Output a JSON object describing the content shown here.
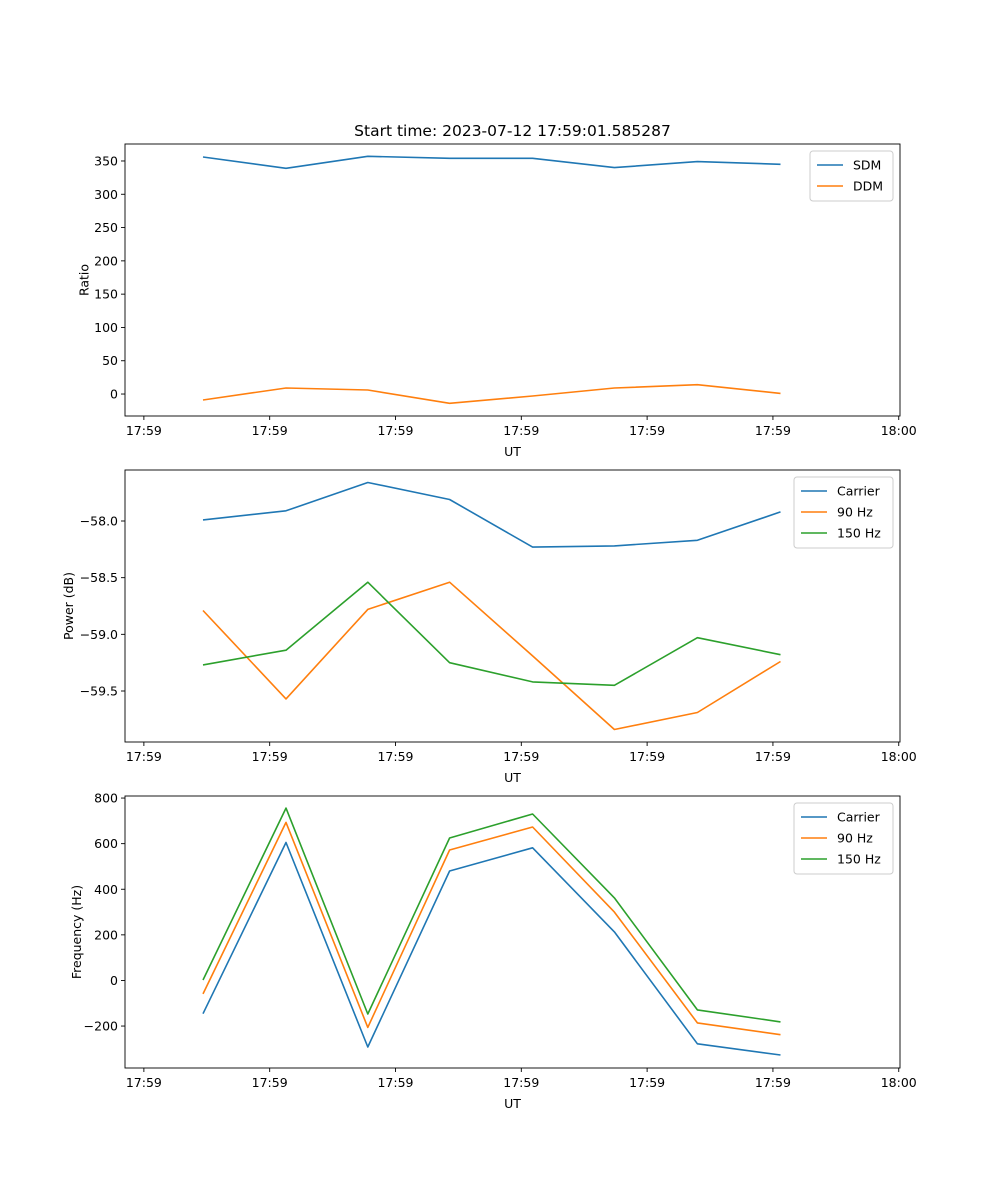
{
  "title": "Start time: 2023-07-12 17:59:01.585287",
  "colors": {
    "blue": "#1f77b4",
    "orange": "#ff7f0e",
    "green": "#2ca02c"
  },
  "chart_data": [
    {
      "type": "line",
      "xlabel": "UT",
      "ylabel": "Ratio",
      "x_units": "seconds after 17:59:00",
      "x": [
        4.7,
        11.3,
        17.8,
        24.3,
        30.9,
        37.4,
        44.0,
        50.6
      ],
      "xlim": [
        -1.5,
        60.1
      ],
      "xticks": [
        0,
        10,
        20,
        30,
        40,
        50,
        60
      ],
      "xtick_labels": [
        "17:59",
        "17:59",
        "17:59",
        "17:59",
        "17:59",
        "17:59",
        "18:00"
      ],
      "ylim": [
        -33,
        375.5
      ],
      "yticks": [
        0,
        50,
        100,
        150,
        200,
        250,
        300,
        350
      ],
      "ytick_labels": [
        "0",
        "50",
        "100",
        "150",
        "200",
        "250",
        "300",
        "350"
      ],
      "legend_position": "top-right",
      "series": [
        {
          "name": "SDM",
          "color": "#1f77b4",
          "values": [
            356,
            339,
            357,
            354,
            354,
            340,
            349,
            345
          ]
        },
        {
          "name": "DDM",
          "color": "#ff7f0e",
          "values": [
            -9,
            9,
            6,
            -14,
            -3,
            9,
            14,
            1
          ]
        }
      ]
    },
    {
      "type": "line",
      "xlabel": "UT",
      "ylabel": "Power (dB)",
      "x_units": "seconds after 17:59:00",
      "x": [
        4.7,
        11.3,
        17.8,
        24.3,
        30.9,
        37.4,
        44.0,
        50.6
      ],
      "xlim": [
        -1.5,
        60.1
      ],
      "xticks": [
        0,
        10,
        20,
        30,
        40,
        50,
        60
      ],
      "xtick_labels": [
        "17:59",
        "17:59",
        "17:59",
        "17:59",
        "17:59",
        "17:59",
        "18:00"
      ],
      "ylim": [
        -59.95,
        -57.55
      ],
      "yticks": [
        -58.0,
        -58.5,
        -59.0,
        -59.5
      ],
      "ytick_labels": [
        "−58.0",
        "−58.5",
        "−59.0",
        "−59.5"
      ],
      "legend_position": "top-right",
      "series": [
        {
          "name": "Carrier",
          "color": "#1f77b4",
          "values": [
            -57.99,
            -57.91,
            -57.66,
            -57.81,
            -58.23,
            -58.22,
            -58.17,
            -57.92
          ]
        },
        {
          "name": "90 Hz",
          "color": "#ff7f0e",
          "values": [
            -58.79,
            -59.57,
            -58.78,
            -58.54,
            -59.19,
            -59.84,
            -59.69,
            -59.24
          ]
        },
        {
          "name": "150 Hz",
          "color": "#2ca02c",
          "values": [
            -59.27,
            -59.14,
            -58.54,
            -59.25,
            -59.42,
            -59.45,
            -59.03,
            -59.18
          ]
        }
      ]
    },
    {
      "type": "line",
      "xlabel": "UT",
      "ylabel": "Frequency (Hz)",
      "x_units": "seconds after 17:59:00",
      "x": [
        4.7,
        11.3,
        17.8,
        24.3,
        30.9,
        37.4,
        44.0,
        50.6
      ],
      "xlim": [
        -1.5,
        60.1
      ],
      "xticks": [
        0,
        10,
        20,
        30,
        40,
        50,
        60
      ],
      "xtick_labels": [
        "17:59",
        "17:59",
        "17:59",
        "17:59",
        "17:59",
        "17:59",
        "18:00"
      ],
      "ylim": [
        -384,
        809
      ],
      "yticks": [
        -200,
        0,
        200,
        400,
        600,
        800
      ],
      "ytick_labels": [
        "−200",
        "0",
        "200",
        "400",
        "600",
        "800"
      ],
      "legend_position": "top-right",
      "series": [
        {
          "name": "Carrier",
          "color": "#1f77b4",
          "values": [
            -146,
            605,
            -292,
            480,
            582,
            213,
            -278,
            -327
          ]
        },
        {
          "name": "90 Hz",
          "color": "#ff7f0e",
          "values": [
            -59,
            693,
            -206,
            572,
            673,
            300,
            -186,
            -238
          ]
        },
        {
          "name": "150 Hz",
          "color": "#2ca02c",
          "values": [
            2,
            756,
            -147,
            625,
            730,
            362,
            -129,
            -182
          ]
        }
      ]
    }
  ]
}
